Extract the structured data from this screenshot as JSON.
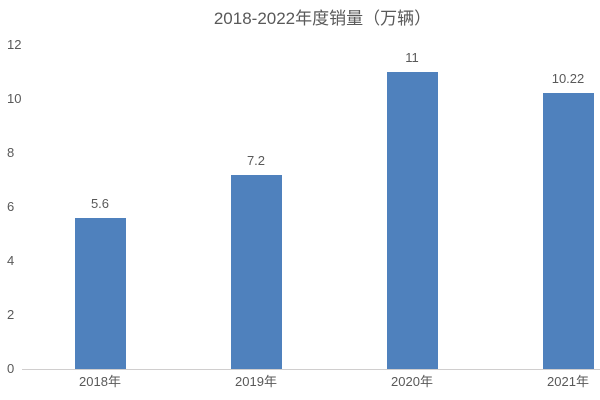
{
  "chart_data": {
    "type": "bar",
    "title": "2018-2022年度销量（万辆）",
    "categories": [
      "2018年",
      "2019年",
      "2020年",
      "2021年"
    ],
    "values": [
      5.6,
      7.2,
      11,
      10.22
    ],
    "value_labels": [
      "5.6",
      "7.2",
      "11",
      "10.22"
    ],
    "series": [
      {
        "name": "销量",
        "values": [
          5.6,
          7.2,
          11,
          10.22
        ]
      }
    ],
    "xlabel": "",
    "ylabel": "",
    "y_ticks": [
      0,
      2,
      4,
      6,
      8,
      10,
      12
    ],
    "ylim": [
      0,
      12
    ],
    "grid": false,
    "legend_position": "none",
    "bar_color": "#4F81BD",
    "text_color": "#595959",
    "axis_line_color": "#d0cece"
  }
}
